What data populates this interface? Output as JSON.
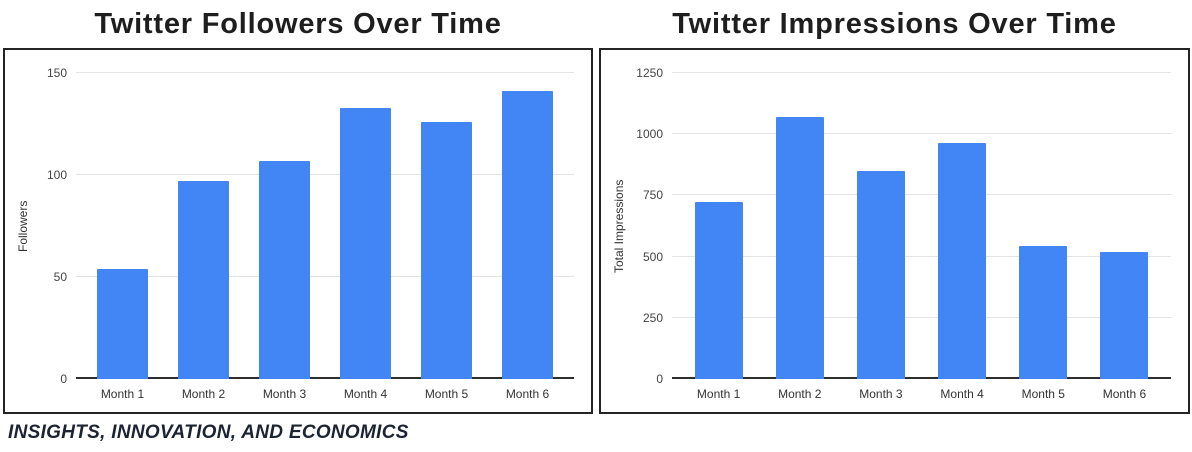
{
  "footer": {
    "text": "INSIGHTS, INNOVATION, AND ECONOMICS"
  },
  "colors": {
    "bar": "#4285F4",
    "gridline": "#e4e4e4",
    "axis_baseline": "#2e2e2e",
    "tick_label": "#444444",
    "title": "#1e1e1e",
    "panel_border": "#242424",
    "footer_text": "#1c2433"
  },
  "chart_data": [
    {
      "type": "bar",
      "title": "Twitter Followers Over Time",
      "xlabel": "",
      "ylabel": "Followers",
      "categories": [
        "Month 1",
        "Month 2",
        "Month 3",
        "Month 4",
        "Month 5",
        "Month 6"
      ],
      "values": [
        54,
        97,
        107,
        133,
        126,
        141
      ],
      "yticks": [
        0,
        50,
        100,
        150
      ],
      "ylim": [
        0,
        150
      ],
      "grid": true,
      "legend": "none",
      "bar_color": "#4285F4"
    },
    {
      "type": "bar",
      "title": "Twitter Impressions Over Time",
      "xlabel": "",
      "ylabel": "Total Impressions",
      "categories": [
        "Month 1",
        "Month 2",
        "Month 3",
        "Month 4",
        "Month 5",
        "Month 6"
      ],
      "values": [
        725,
        1070,
        850,
        965,
        545,
        520
      ],
      "yticks": [
        0,
        250,
        500,
        750,
        1000,
        1250
      ],
      "ylim": [
        0,
        1250
      ],
      "grid": true,
      "legend": "none",
      "bar_color": "#4285F4"
    }
  ]
}
